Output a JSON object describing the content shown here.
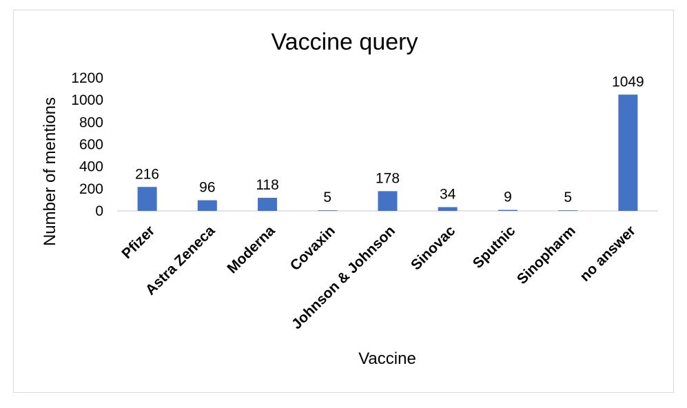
{
  "chart_data": {
    "type": "bar",
    "title": "Vaccine query",
    "xlabel": "Vaccine",
    "ylabel": "Number of mentions",
    "categories": [
      "Pfizer",
      "Astra Zeneca",
      "Moderna",
      "Covaxin",
      "Johnson & Johnson",
      "Sinovac",
      "Sputnic",
      "Sinopharm",
      "no answer"
    ],
    "values": [
      216,
      96,
      118,
      5,
      178,
      34,
      9,
      5,
      1049
    ],
    "data_labels": [
      "216",
      "96",
      "118",
      "5",
      "178",
      "34",
      "9",
      "5",
      "1049"
    ],
    "ylim": [
      0,
      1200
    ],
    "yticks": [
      "0",
      "200",
      "400",
      "600",
      "800",
      "1000",
      "1200"
    ],
    "grid": false,
    "legend": "none",
    "bar_color": "#4472c4"
  }
}
